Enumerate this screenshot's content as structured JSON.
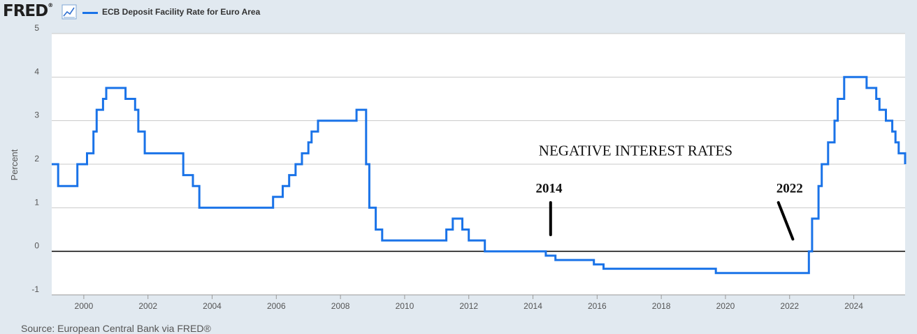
{
  "header": {
    "logo_text": "FRED",
    "legend_label": "ECB Deposit Facility Rate for Euro Area",
    "series_color": "#1a73e8"
  },
  "source_note": "Source: European Central Bank via FRED®",
  "chart_data": {
    "type": "line",
    "title": "",
    "ylabel": "Percent",
    "xlabel": "",
    "xlim": [
      1999.0,
      2025.6
    ],
    "ylim": [
      -1,
      5
    ],
    "x_ticks": [
      2000,
      2002,
      2004,
      2006,
      2008,
      2010,
      2012,
      2014,
      2016,
      2018,
      2020,
      2022,
      2024
    ],
    "y_ticks": [
      -1,
      0,
      1,
      2,
      3,
      4,
      5
    ],
    "grid": "horizontal",
    "step": true,
    "zero_line": true,
    "series": [
      {
        "name": "ECB Deposit Facility Rate for Euro Area",
        "x": [
          1999.0,
          1999.2,
          1999.8,
          2000.1,
          2000.3,
          2000.4,
          2000.6,
          2000.7,
          2000.8,
          2001.3,
          2001.6,
          2001.7,
          2001.9,
          2003.1,
          2003.4,
          2003.6,
          2005.9,
          2006.2,
          2006.4,
          2006.6,
          2006.8,
          2007.0,
          2007.1,
          2007.3,
          2007.5,
          2008.5,
          2008.8,
          2008.9,
          2009.1,
          2009.3,
          2009.4,
          2011.3,
          2011.5,
          2011.8,
          2012.0,
          2012.5,
          2014.4,
          2014.7,
          2015.9,
          2016.2,
          2019.7,
          2022.6,
          2022.7,
          2022.9,
          2023.0,
          2023.2,
          2023.4,
          2023.5,
          2023.7,
          2024.4,
          2024.7,
          2024.8,
          2025.0,
          2025.2,
          2025.3,
          2025.4,
          2025.6
        ],
        "y": [
          2.0,
          1.5,
          2.0,
          2.25,
          2.75,
          3.25,
          3.5,
          3.75,
          3.75,
          3.5,
          3.25,
          2.75,
          2.25,
          1.75,
          1.5,
          1.0,
          1.25,
          1.5,
          1.75,
          2.0,
          2.25,
          2.5,
          2.75,
          3.0,
          3.0,
          3.25,
          2.0,
          1.0,
          0.5,
          0.25,
          0.25,
          0.5,
          0.75,
          0.5,
          0.25,
          0.0,
          -0.1,
          -0.2,
          -0.3,
          -0.4,
          -0.5,
          0.0,
          0.75,
          1.5,
          2.0,
          2.5,
          3.0,
          3.5,
          4.0,
          3.75,
          3.5,
          3.25,
          3.0,
          2.75,
          2.5,
          2.25,
          2.0
        ]
      }
    ],
    "annotations": [
      {
        "text": "NEGATIVE INTEREST RATES",
        "x": 2017.2,
        "y": 2.2,
        "kind": "main"
      },
      {
        "text": "2014",
        "x": 2014.5,
        "y": 1.35,
        "kind": "year"
      },
      {
        "text": "2022",
        "x": 2022.0,
        "y": 1.35,
        "kind": "year"
      }
    ],
    "annotation_marks": [
      {
        "name": "marker-2014",
        "x1": 2014.55,
        "y1": 1.12,
        "x2": 2014.55,
        "y2": 0.38
      },
      {
        "name": "marker-2022",
        "x1": 2021.65,
        "y1": 1.12,
        "x2": 2022.1,
        "y2": 0.28
      }
    ]
  }
}
